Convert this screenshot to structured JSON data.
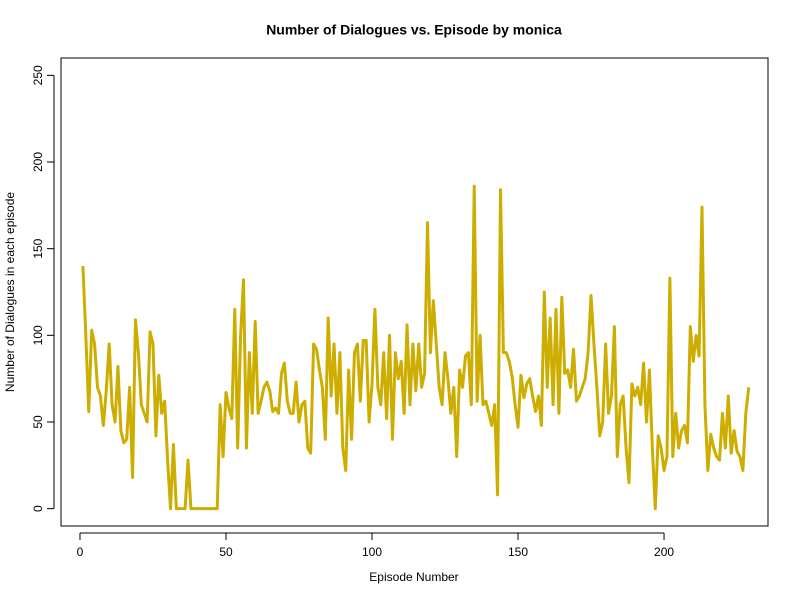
{
  "chart_data": {
    "type": "line",
    "title": "Number of Dialogues vs. Episode by monica",
    "x_label": "Episode Number",
    "y_label": "Number of Dialogues in each episode",
    "x": [
      1,
      2,
      3,
      4,
      5,
      6,
      7,
      8,
      9,
      10,
      11,
      12,
      13,
      14,
      15,
      16,
      17,
      18,
      19,
      20,
      21,
      22,
      23,
      24,
      25,
      26,
      27,
      28,
      29,
      30,
      31,
      32,
      33,
      34,
      35,
      36,
      37,
      38,
      39,
      40,
      41,
      42,
      43,
      44,
      45,
      46,
      47,
      48,
      49,
      50,
      51,
      52,
      53,
      54,
      55,
      56,
      57,
      58,
      59,
      60,
      61,
      62,
      63,
      64,
      65,
      66,
      67,
      68,
      69,
      70,
      71,
      72,
      73,
      74,
      75,
      76,
      77,
      78,
      79,
      80,
      81,
      82,
      83,
      84,
      85,
      86,
      87,
      88,
      89,
      90,
      91,
      92,
      93,
      94,
      95,
      96,
      97,
      98,
      99,
      100,
      101,
      102,
      103,
      104,
      105,
      106,
      107,
      108,
      109,
      110,
      111,
      112,
      113,
      114,
      115,
      116,
      117,
      118,
      119,
      120,
      121,
      122,
      123,
      124,
      125,
      126,
      127,
      128,
      129,
      130,
      131,
      132,
      133,
      134,
      135,
      136,
      137,
      138,
      139,
      140,
      141,
      142,
      143,
      144,
      145,
      146,
      147,
      148,
      149,
      150,
      151,
      152,
      153,
      154,
      155,
      156,
      157,
      158,
      159,
      160,
      161,
      162,
      163,
      164,
      165,
      166,
      167,
      168,
      169,
      170,
      171,
      172,
      173,
      174,
      175,
      176,
      177,
      178,
      179,
      180,
      181,
      182,
      183,
      184,
      185,
      186,
      187,
      188,
      189,
      190,
      191,
      192,
      193,
      194,
      195,
      196,
      197,
      198,
      199,
      200,
      201,
      202,
      203,
      204,
      205,
      206,
      207,
      208,
      209,
      210,
      211,
      212,
      213,
      214,
      215,
      216,
      217,
      218,
      219,
      220,
      221,
      222,
      223,
      224,
      225,
      226,
      227,
      228,
      229
    ],
    "series": [
      {
        "color": "#CDAD00",
        "values": [
          140,
          100,
          56,
          103,
          95,
          70,
          65,
          48,
          68,
          95,
          60,
          50,
          82,
          45,
          38,
          40,
          70,
          18,
          109,
          90,
          60,
          55,
          50,
          102,
          95,
          42,
          77,
          55,
          62,
          28,
          0,
          37,
          0,
          0,
          0,
          0,
          28,
          0,
          0,
          0,
          0,
          0,
          0,
          0,
          0,
          0,
          0,
          60,
          30,
          67,
          58,
          52,
          115,
          35,
          100,
          132,
          35,
          90,
          55,
          108,
          55,
          62,
          70,
          73,
          68,
          56,
          58,
          55,
          78,
          84,
          62,
          55,
          55,
          73,
          50,
          60,
          62,
          35,
          32,
          95,
          92,
          80,
          70,
          40,
          110,
          65,
          95,
          55,
          90,
          35,
          22,
          80,
          40,
          90,
          95,
          62,
          97,
          97,
          50,
          72,
          115,
          70,
          60,
          90,
          52,
          100,
          40,
          90,
          75,
          85,
          55,
          106,
          60,
          95,
          68,
          95,
          70,
          78,
          165,
          90,
          120,
          95,
          70,
          60,
          90,
          75,
          55,
          70,
          30,
          80,
          70,
          88,
          90,
          60,
          186,
          62,
          100,
          60,
          62,
          55,
          48,
          60,
          8,
          184,
          90,
          90,
          85,
          76,
          60,
          47,
          77,
          64,
          72,
          75,
          65,
          56,
          65,
          48,
          125,
          70,
          110,
          60,
          115,
          55,
          122,
          78,
          80,
          70,
          92,
          62,
          65,
          70,
          75,
          90,
          123,
          95,
          70,
          42,
          50,
          95,
          55,
          65,
          105,
          30,
          60,
          65,
          35,
          15,
          72,
          65,
          70,
          60,
          84,
          50,
          80,
          35,
          0,
          42,
          35,
          22,
          30,
          133,
          30,
          55,
          35,
          45,
          48,
          38,
          105,
          85,
          100,
          88,
          174,
          60,
          22,
          43,
          35,
          30,
          28,
          55,
          35,
          65,
          32,
          45,
          33,
          30,
          22,
          55,
          70
        ]
      }
    ],
    "xlim": [
      -6.5,
      235.6
    ],
    "ylim": [
      -10,
      260
    ],
    "xticks": [
      0,
      50,
      100,
      150,
      200
    ],
    "yticks": [
      0,
      50,
      100,
      150,
      200,
      250
    ]
  }
}
